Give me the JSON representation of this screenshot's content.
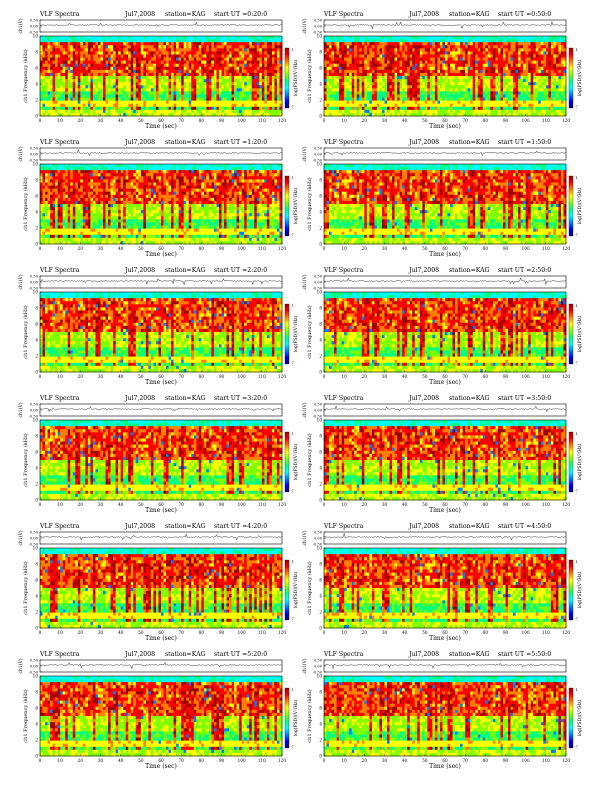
{
  "page": {
    "panels": [
      {
        "left": "VLF Spectra",
        "date": "Jul7,2008",
        "station": "station=KAG",
        "start": "start  UT =0:20:0"
      },
      {
        "left": "VLF Spectra",
        "date": "Jul7,2008",
        "station": "station=KAG",
        "start": "start  UT =0:50:0"
      },
      {
        "left": "VLF Spectra",
        "date": "Jul7,2008",
        "station": "station=KAG",
        "start": "start  UT =1:20:0"
      },
      {
        "left": "VLF Spectra",
        "date": "Jul7,2008",
        "station": "station=KAG",
        "start": "start  UT =1:50:0"
      },
      {
        "left": "VLF Spectra",
        "date": "Jul7,2008",
        "station": "station=KAG",
        "start": "start  UT =2:20:0"
      },
      {
        "left": "VLF Spectra",
        "date": "Jul7,2008",
        "station": "station=KAG",
        "start": "start  UT =2:50:0"
      },
      {
        "left": "VLF Spectra",
        "date": "Jul7,2008",
        "station": "station=KAG",
        "start": "start  UT =3:20:0"
      },
      {
        "left": "VLF Spectra",
        "date": "Jul7,2008",
        "station": "station=KAG",
        "start": "start  UT =3:50:0"
      },
      {
        "left": "VLF Spectra",
        "date": "Jul7,2008",
        "station": "station=KAG",
        "start": "start  UT =4:20:0"
      },
      {
        "left": "VLF Spectra",
        "date": "Jul7,2008",
        "station": "station=KAG",
        "start": "start  UT =4:50:0"
      },
      {
        "left": "VLF Spectra",
        "date": "Jul7,2008",
        "station": "station=KAG",
        "start": "start  UT =5:20:0"
      },
      {
        "left": "VLF Spectra",
        "date": "Jul7,2008",
        "station": "station=KAG",
        "start": "start  UT =5:50:0"
      }
    ]
  },
  "colors": {
    "colormap": [
      "#000080",
      "#0000ff",
      "#0080ff",
      "#00ffff",
      "#00ff80",
      "#80ff00",
      "#ffff00",
      "#ff8000",
      "#ff0000",
      "#a00000"
    ]
  },
  "chart_data": {
    "type": "heatmap",
    "xlabel": "Time (sec)",
    "ylabel_spectrum": "ch1 Frequency (kHz)",
    "ylabel_waveform": "ch1(V)",
    "colorbar_label": "log(PSD)(V²/Hz)",
    "xlim": [
      0,
      120
    ],
    "x_ticks": [
      "0",
      "10",
      "20",
      "30",
      "40",
      "50",
      "60",
      "70",
      "80",
      "90",
      "100",
      "110",
      "120"
    ],
    "ylim": [
      0,
      10
    ],
    "y_ticks": [
      "0",
      "2",
      "4",
      "6",
      "8",
      "10"
    ],
    "waveform_ylim": [
      -0.5,
      0.5
    ],
    "waveform_ticks": [
      "0.50",
      "0.00",
      "-0.50"
    ],
    "colorbar_ticks": [
      "-1",
      "-7"
    ],
    "grid": false
  }
}
